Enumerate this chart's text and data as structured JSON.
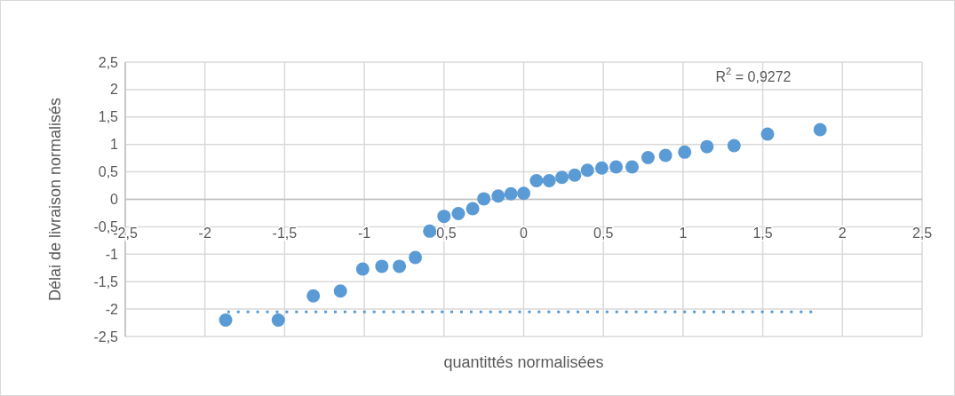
{
  "chart_data": {
    "type": "scatter",
    "xlabel": "quantittés normalisées",
    "ylabel": "Délai de livraison normalisés",
    "annotations": [
      "R$^{2}$ = 0,9272"
    ],
    "series": [
      {
        "color": "#5b9bd5",
        "marker": "circle",
        "x": [
          -1.87,
          -1.54,
          -1.32,
          -1.15,
          -1.01,
          -0.89,
          -0.78,
          -0.68,
          -0.59,
          -0.5,
          -0.41,
          -0.32,
          -0.25,
          -0.16,
          -0.08,
          0.0,
          0.08,
          0.16,
          0.24,
          0.32,
          0.4,
          0.49,
          0.58,
          0.68,
          0.78,
          0.89,
          1.01,
          1.15,
          1.32,
          1.53,
          1.86
        ],
        "values": [
          -2.2,
          -2.2,
          -1.76,
          -1.67,
          -1.27,
          -1.22,
          -1.22,
          -1.06,
          -0.58,
          -0.31,
          -0.26,
          -0.17,
          0.01,
          0.06,
          0.1,
          0.11,
          0.34,
          0.34,
          0.4,
          0.44,
          0.53,
          0.57,
          0.59,
          0.59,
          0.76,
          0.8,
          0.86,
          0.96,
          0.98,
          1.19,
          1.27
        ]
      },
      {
        "type": "line",
        "color": "#5b9bd5",
        "line_style": "dotted",
        "x": [
          -1.86,
          1.81
        ],
        "values": [
          -2.05,
          -2.05
        ]
      }
    ],
    "xlim": [
      -2.5,
      2.5
    ],
    "ylim": [
      -2.5,
      2.5
    ],
    "xticks": [
      {
        "value": -2.5,
        "label": "-2,5"
      },
      -2,
      {
        "value": -1.5,
        "label": "-1,5"
      },
      -1,
      {
        "value": -0.5,
        "label": "-0,5"
      },
      0,
      {
        "value": 0.5,
        "label": "0,5"
      },
      1,
      {
        "value": 1.5,
        "label": "1,5"
      },
      2,
      {
        "value": 2.5,
        "label": "2,5"
      }
    ],
    "yticks": [
      {
        "value": -2.5,
        "label": "-2,5"
      },
      -2,
      {
        "value": -1.5,
        "label": "-1,5"
      },
      -1,
      {
        "value": -0.5,
        "label": "-0,5"
      },
      0,
      {
        "value": 0.5,
        "label": "0,5"
      },
      1,
      {
        "value": 1.5,
        "label": "1,5"
      },
      2,
      {
        "value": 2.5,
        "label": "2,5"
      }
    ],
    "grid": true
  }
}
